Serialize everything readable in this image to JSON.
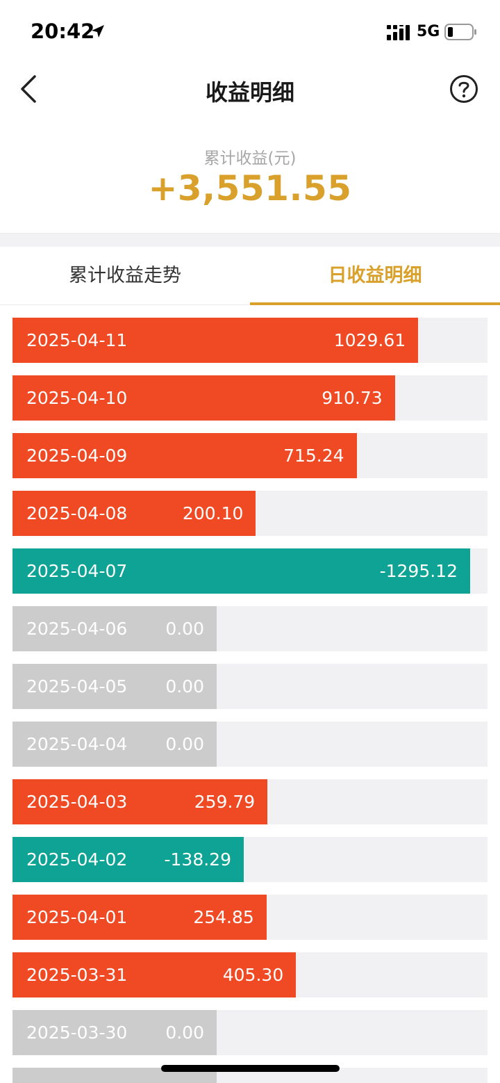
{
  "status_bar": {
    "time": "20:42",
    "network": "5G"
  },
  "nav": {
    "title": "收益明细"
  },
  "summary": {
    "label": "累计收益(元)",
    "value": "+3,551.55"
  },
  "tabs": [
    {
      "label": "累计收益走势",
      "active": false
    },
    {
      "label": "日收益明细",
      "active": true
    }
  ],
  "colors": {
    "positive": "#f04a25",
    "negative": "#0ea394",
    "zero": "#cccccc",
    "accent": "#d9a12b",
    "track": "#f1f1f3"
  },
  "daily_earnings": [
    {
      "date": "2025-04-11",
      "value": "1029.61",
      "amount": 1029.61
    },
    {
      "date": "2025-04-10",
      "value": "910.73",
      "amount": 910.73
    },
    {
      "date": "2025-04-09",
      "value": "715.24",
      "amount": 715.24
    },
    {
      "date": "2025-04-08",
      "value": "200.10",
      "amount": 200.1
    },
    {
      "date": "2025-04-07",
      "value": "-1295.12",
      "amount": -1295.12
    },
    {
      "date": "2025-04-06",
      "value": "0.00",
      "amount": 0
    },
    {
      "date": "2025-04-05",
      "value": "0.00",
      "amount": 0
    },
    {
      "date": "2025-04-04",
      "value": "0.00",
      "amount": 0
    },
    {
      "date": "2025-04-03",
      "value": "259.79",
      "amount": 259.79
    },
    {
      "date": "2025-04-02",
      "value": "-138.29",
      "amount": -138.29
    },
    {
      "date": "2025-04-01",
      "value": "254.85",
      "amount": 254.85
    },
    {
      "date": "2025-03-31",
      "value": "405.30",
      "amount": 405.3
    },
    {
      "date": "2025-03-30",
      "value": "0.00",
      "amount": 0
    },
    {
      "date": "",
      "value": "",
      "amount": 0
    }
  ]
}
